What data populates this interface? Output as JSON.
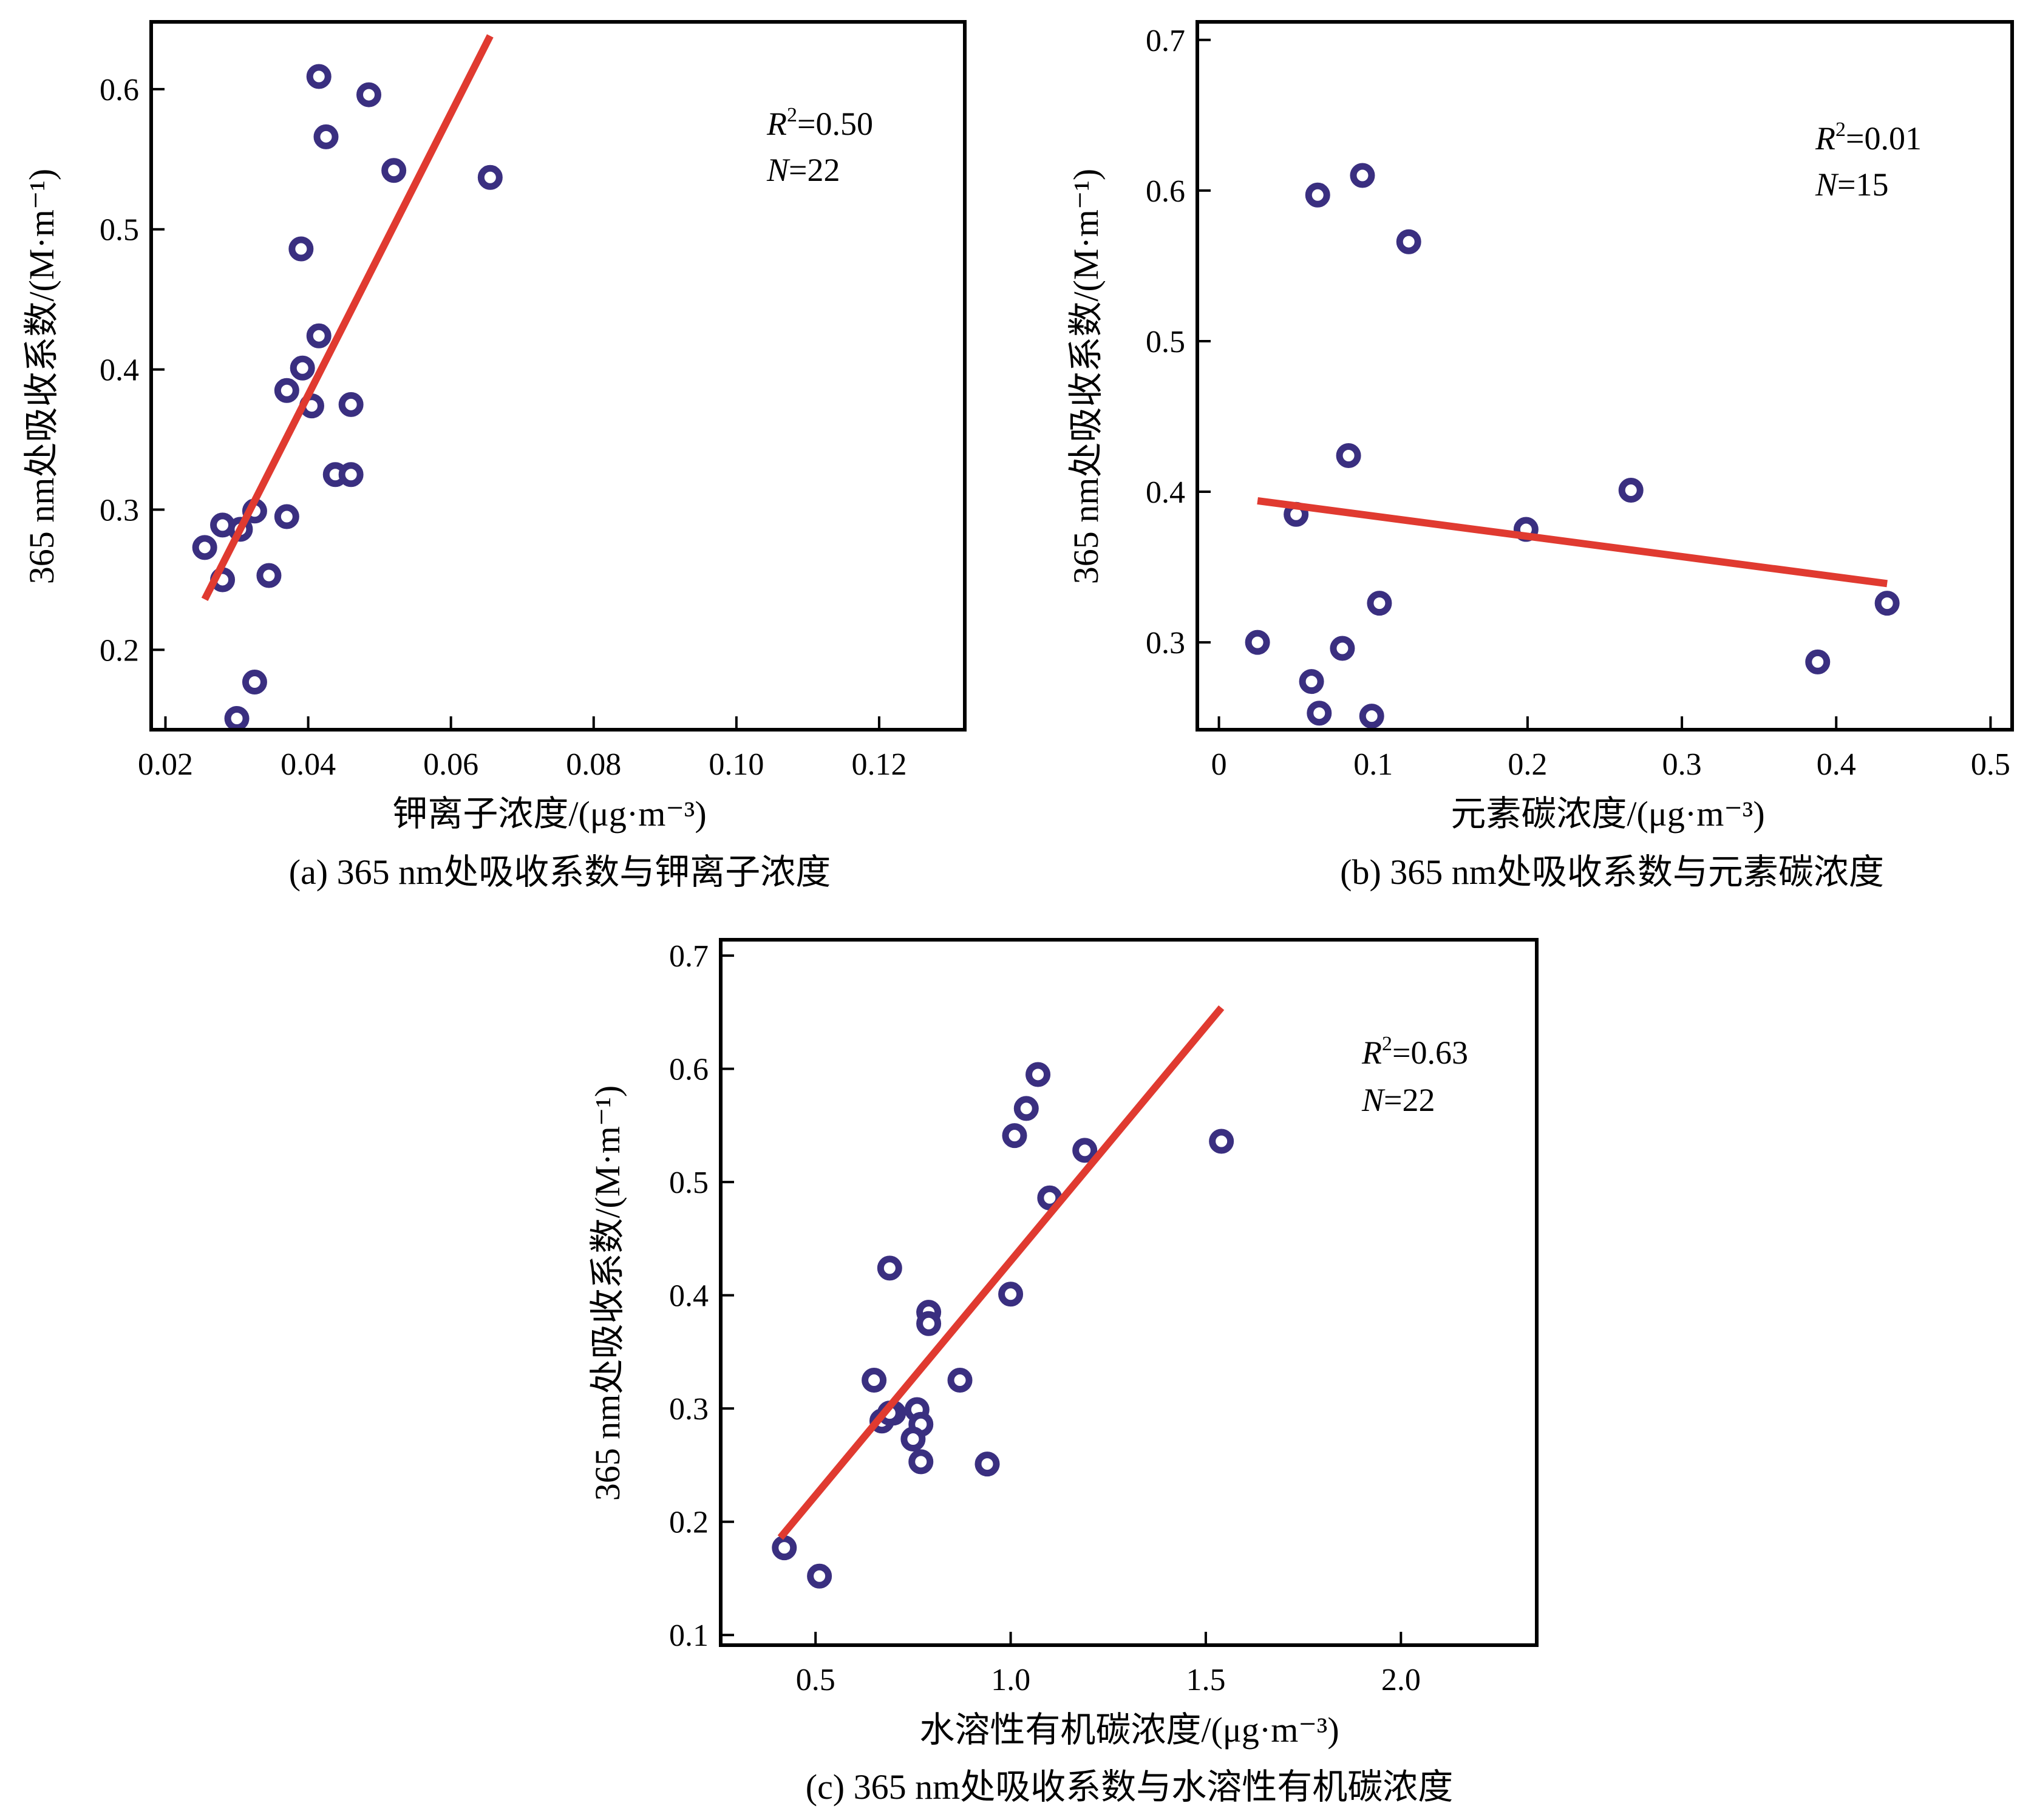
{
  "colors": {
    "point": "#3a2f80",
    "fit_line": "#e03a30",
    "frame": "#000000"
  },
  "chart_data": [
    {
      "panel": "a",
      "type": "scatter",
      "caption": "(a) 365 nm处吸收系数与钾离子浓度",
      "xlabel": "钾离子浓度/(μg·m⁻³)",
      "ylabel": "365 nm处吸收系数/(M·m⁻¹)",
      "xlim": [
        0.018,
        0.132
      ],
      "ylim": [
        0.143,
        0.648
      ],
      "xticks": [
        0.02,
        0.04,
        0.06,
        0.08,
        0.1,
        0.12
      ],
      "xtick_labels": [
        "0.02",
        "0.04",
        "0.06",
        "0.08",
        "0.10",
        "0.12"
      ],
      "yticks": [
        0.2,
        0.3,
        0.4,
        0.5,
        0.6
      ],
      "ytick_labels": [
        "0.2",
        "0.3",
        "0.4",
        "0.5",
        "0.6"
      ],
      "annotation": {
        "r2_sym": "R",
        "r2_sup": "2",
        "r2_val": "=0.50",
        "n_sym": "N",
        "n_val": "=22"
      },
      "fit": {
        "x": [
          0.0255,
          0.0655
        ],
        "y": [
          0.236,
          0.638
        ]
      },
      "points": [
        {
          "x": 0.0415,
          "y": 0.609
        },
        {
          "x": 0.0485,
          "y": 0.596
        },
        {
          "x": 0.0425,
          "y": 0.566
        },
        {
          "x": 0.052,
          "y": 0.542
        },
        {
          "x": 0.0655,
          "y": 0.537
        },
        {
          "x": 0.039,
          "y": 0.486
        },
        {
          "x": 0.0415,
          "y": 0.424
        },
        {
          "x": 0.0392,
          "y": 0.401
        },
        {
          "x": 0.037,
          "y": 0.385
        },
        {
          "x": 0.0405,
          "y": 0.374
        },
        {
          "x": 0.046,
          "y": 0.375
        },
        {
          "x": 0.0438,
          "y": 0.325
        },
        {
          "x": 0.046,
          "y": 0.325
        },
        {
          "x": 0.0325,
          "y": 0.299
        },
        {
          "x": 0.037,
          "y": 0.295
        },
        {
          "x": 0.028,
          "y": 0.289
        },
        {
          "x": 0.0305,
          "y": 0.286
        },
        {
          "x": 0.0255,
          "y": 0.273
        },
        {
          "x": 0.028,
          "y": 0.25
        },
        {
          "x": 0.0345,
          "y": 0.253
        },
        {
          "x": 0.0325,
          "y": 0.177
        },
        {
          "x": 0.03,
          "y": 0.151
        }
      ]
    },
    {
      "panel": "b",
      "type": "scatter",
      "caption": "(b) 365 nm处吸收系数与元素碳浓度",
      "xlabel": "元素碳浓度/(μg·m⁻³)",
      "ylabel": "365 nm处吸收系数/(M·m⁻¹)",
      "xlim": [
        -0.014,
        0.514
      ],
      "ylim": [
        0.242,
        0.712
      ],
      "xticks": [
        0,
        0.1,
        0.2,
        0.3,
        0.4,
        0.5
      ],
      "xtick_labels": [
        "0",
        "0.1",
        "0.2",
        "0.3",
        "0.4",
        "0.5"
      ],
      "yticks": [
        0.3,
        0.4,
        0.5,
        0.6,
        0.7
      ],
      "ytick_labels": [
        "0.3",
        "0.4",
        "0.5",
        "0.6",
        "0.7"
      ],
      "annotation": {
        "r2_sym": "R",
        "r2_sup": "2",
        "r2_val": "=0.01",
        "n_sym": "N",
        "n_val": "=15"
      },
      "fit": {
        "x": [
          0.025,
          0.433
        ],
        "y": [
          0.394,
          0.339
        ]
      },
      "points": [
        {
          "x": 0.093,
          "y": 0.61
        },
        {
          "x": 0.064,
          "y": 0.597
        },
        {
          "x": 0.123,
          "y": 0.566
        },
        {
          "x": 0.084,
          "y": 0.424
        },
        {
          "x": 0.267,
          "y": 0.401
        },
        {
          "x": 0.05,
          "y": 0.385
        },
        {
          "x": 0.199,
          "y": 0.375
        },
        {
          "x": 0.104,
          "y": 0.326
        },
        {
          "x": 0.433,
          "y": 0.326
        },
        {
          "x": 0.025,
          "y": 0.3
        },
        {
          "x": 0.08,
          "y": 0.296
        },
        {
          "x": 0.388,
          "y": 0.287
        },
        {
          "x": 0.06,
          "y": 0.274
        },
        {
          "x": 0.065,
          "y": 0.253
        },
        {
          "x": 0.099,
          "y": 0.251
        }
      ]
    },
    {
      "panel": "c",
      "type": "scatter",
      "caption": "(c) 365 nm处吸收系数与水溶性有机碳浓度",
      "xlabel": "水溶性有机碳浓度/(μg·m⁻³)",
      "ylabel": "365 nm处吸收系数/(M·m⁻¹)",
      "xlim": [
        0.257,
        2.348
      ],
      "ylim": [
        0.091,
        0.714
      ],
      "xticks": [
        0.5,
        1.0,
        1.5,
        2.0
      ],
      "xtick_labels": [
        "0.5",
        "1.0",
        "1.5",
        "2.0"
      ],
      "yticks": [
        0.1,
        0.2,
        0.3,
        0.4,
        0.5,
        0.6,
        0.7
      ],
      "ytick_labels": [
        "0.1",
        "0.2",
        "0.3",
        "0.4",
        "0.5",
        "0.6",
        "0.7"
      ],
      "annotation": {
        "r2_sym": "R",
        "r2_sup": "2",
        "r2_val": "=0.63",
        "n_sym": "N",
        "n_val": "=22"
      },
      "fit": {
        "x": [
          0.41,
          1.54
        ],
        "y": [
          0.186,
          0.654
        ]
      },
      "points": [
        {
          "x": 1.07,
          "y": 0.595
        },
        {
          "x": 1.04,
          "y": 0.565
        },
        {
          "x": 1.01,
          "y": 0.541
        },
        {
          "x": 1.54,
          "y": 0.536
        },
        {
          "x": 1.19,
          "y": 0.528
        },
        {
          "x": 1.1,
          "y": 0.486
        },
        {
          "x": 0.69,
          "y": 0.424
        },
        {
          "x": 1.0,
          "y": 0.401
        },
        {
          "x": 0.79,
          "y": 0.385
        },
        {
          "x": 0.79,
          "y": 0.375
        },
        {
          "x": 0.65,
          "y": 0.325
        },
        {
          "x": 0.87,
          "y": 0.325
        },
        {
          "x": 0.76,
          "y": 0.299
        },
        {
          "x": 0.7,
          "y": 0.296
        },
        {
          "x": 0.67,
          "y": 0.289
        },
        {
          "x": 0.77,
          "y": 0.286
        },
        {
          "x": 0.75,
          "y": 0.273
        },
        {
          "x": 0.77,
          "y": 0.253
        },
        {
          "x": 0.94,
          "y": 0.251
        },
        {
          "x": 0.42,
          "y": 0.177
        },
        {
          "x": 0.51,
          "y": 0.152
        },
        {
          "x": 0.69,
          "y": 0.296
        }
      ]
    }
  ]
}
